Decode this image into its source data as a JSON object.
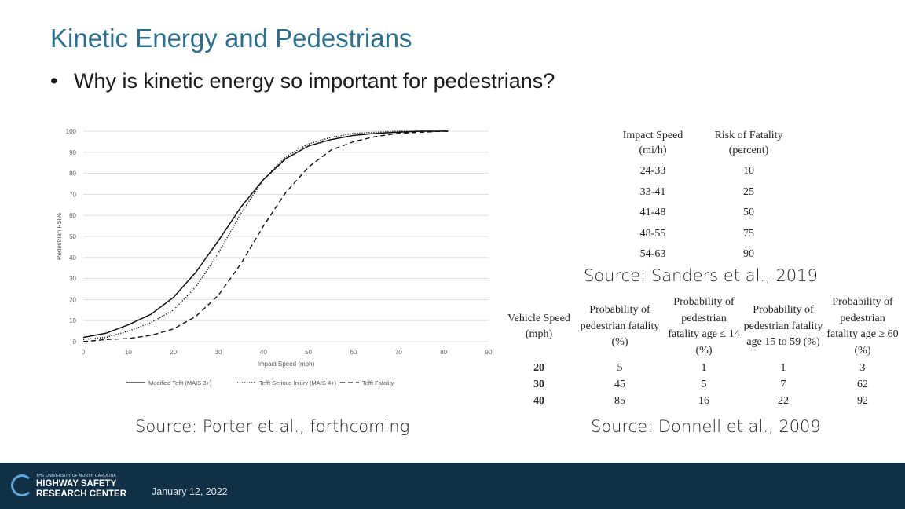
{
  "slide": {
    "title": "Kinetic Energy and Pedestrians",
    "bullet": "Why is kinetic energy so important for pedestrians?"
  },
  "chart_data": {
    "type": "line",
    "xlabel": "Impact Speed (mph)",
    "ylabel": "Pedestrian FSI%",
    "xlim": [
      0,
      90
    ],
    "ylim": [
      0,
      100
    ],
    "x_ticks": [
      "0",
      "10",
      "20",
      "30",
      "40",
      "50",
      "60",
      "70",
      "80",
      "90"
    ],
    "y_ticks": [
      "0",
      "10",
      "20",
      "30",
      "40",
      "50",
      "60",
      "70",
      "80",
      "90",
      "100"
    ],
    "grid": true,
    "legend_position": "bottom",
    "series": [
      {
        "name": "Modified Tefft (MAIS 3+)",
        "style": "solid",
        "x": [
          0,
          5,
          10,
          15,
          20,
          25,
          30,
          35,
          40,
          45,
          50,
          55,
          60,
          65,
          70,
          75,
          80,
          81
        ],
        "y": [
          2,
          4,
          8,
          13,
          21,
          33,
          48,
          64,
          77,
          87,
          93,
          96,
          98,
          99,
          99.5,
          100,
          100,
          100
        ]
      },
      {
        "name": "Tefft Serious Injury (MAIS 4+)",
        "style": "dotted",
        "x": [
          0,
          5,
          10,
          15,
          20,
          25,
          30,
          35,
          40,
          45,
          50,
          55,
          60,
          65,
          70,
          75,
          80,
          81
        ],
        "y": [
          1,
          2,
          5,
          9,
          15,
          26,
          42,
          61,
          77,
          88,
          94,
          97,
          99,
          99.5,
          100,
          100,
          100,
          100
        ]
      },
      {
        "name": "Tefft Fatality",
        "style": "dashed",
        "x": [
          0,
          5,
          10,
          15,
          20,
          25,
          30,
          35,
          40,
          45,
          50,
          55,
          60,
          65,
          70,
          75,
          80,
          81
        ],
        "y": [
          0,
          1,
          1.5,
          3,
          6,
          12,
          22,
          37,
          55,
          71,
          83,
          91,
          95,
          97.5,
          99,
          99.5,
          100,
          100
        ]
      }
    ]
  },
  "source_porter": "Source: Porter et al., forthcoming",
  "table_sanders": {
    "headers": [
      "Impact Speed (mi/h)",
      "Risk of Fatality (percent)"
    ],
    "rows": [
      [
        "24-33",
        "10"
      ],
      [
        "33-41",
        "25"
      ],
      [
        "41-48",
        "50"
      ],
      [
        "48-55",
        "75"
      ],
      [
        "54-63",
        "90"
      ]
    ],
    "source": "Source: Sanders et al., 2019"
  },
  "table_donnell": {
    "headers": [
      "Vehicle Speed (mph)",
      "Probability of pedestrian fatality (%)",
      "Probability of pedestrian fatality age ≤ 14 (%)",
      "Probability of pedestrian fatality age 15 to 59 (%)",
      "Probability of pedestrian fatality age ≥ 60 (%)"
    ],
    "rows": [
      [
        "20",
        "5",
        "1",
        "1",
        "3"
      ],
      [
        "30",
        "45",
        "5",
        "7",
        "62"
      ],
      [
        "40",
        "85",
        "16",
        "22",
        "92"
      ]
    ],
    "source": "Source: Donnell et al., 2009"
  },
  "footer": {
    "logo_small": "THE UNIVERSITY OF NORTH CAROLINA",
    "logo_line1": "HIGHWAY SAFETY",
    "logo_line2": "RESEARCH CENTER",
    "date": "January 12, 2022"
  },
  "colors": {
    "title": "#2e6f8e",
    "footer_bg": "#123045",
    "logo_accent": "#5fa8d8"
  }
}
